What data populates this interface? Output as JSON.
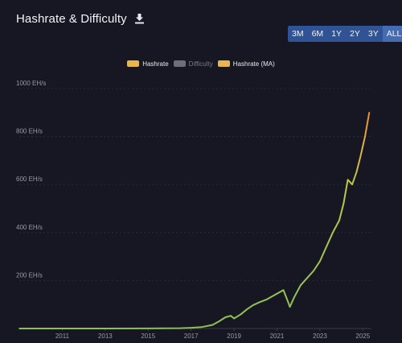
{
  "header": {
    "title": "Hashrate & Difficulty",
    "download_icon": "download-icon"
  },
  "range_buttons": [
    "3M",
    "6M",
    "1Y",
    "2Y",
    "3Y",
    "ALL"
  ],
  "range_selected": "ALL",
  "legend": [
    {
      "label": "Hashrate",
      "color": "#e8b64a",
      "visible": true
    },
    {
      "label": "Difficulty",
      "color": "#6e6e78",
      "visible": false
    },
    {
      "label": "Hashrate (MA)",
      "color": "#e8b64a",
      "visible": true
    }
  ],
  "colors": {
    "background": "#171723",
    "grid": "#2a2a38",
    "line_low": "#8cc152",
    "line_high": "#f07a2c"
  },
  "chart_data": {
    "type": "line",
    "xlim": [
      2009.0,
      2025.4
    ],
    "ylim": [
      0,
      1050
    ],
    "grid": true,
    "legend_position": "top",
    "y_ticks": [
      200,
      400,
      600,
      800,
      1000
    ],
    "y_tick_labels": [
      "200 EH/s",
      "400 EH/s",
      "600 EH/s",
      "800 EH/s",
      "1000 EH/s"
    ],
    "x_ticks": [
      2011,
      2013,
      2015,
      2017,
      2019,
      2021,
      2023,
      2025
    ],
    "x_tick_labels": [
      "2011",
      "2013",
      "2015",
      "2017",
      "2019",
      "2021",
      "2023",
      "2025"
    ],
    "series": [
      {
        "name": "Hashrate (MA)",
        "x": [
          2009.0,
          2011.0,
          2013.0,
          2015.0,
          2016.5,
          2017.0,
          2017.5,
          2018.0,
          2018.3,
          2018.6,
          2018.85,
          2019.0,
          2019.3,
          2019.6,
          2019.9,
          2020.2,
          2020.5,
          2020.8,
          2021.1,
          2021.3,
          2021.5,
          2021.6,
          2021.8,
          2022.1,
          2022.4,
          2022.7,
          2023.0,
          2023.3,
          2023.6,
          2023.9,
          2024.1,
          2024.3,
          2024.5,
          2024.7,
          2024.9,
          2025.1,
          2025.3
        ],
        "values": [
          0,
          0,
          0,
          0.4,
          1.5,
          3,
          6,
          15,
          30,
          47,
          53,
          42,
          58,
          80,
          98,
          110,
          120,
          135,
          150,
          160,
          115,
          90,
          130,
          180,
          210,
          240,
          280,
          340,
          400,
          450,
          520,
          620,
          600,
          650,
          720,
          800,
          900
        ]
      }
    ]
  }
}
